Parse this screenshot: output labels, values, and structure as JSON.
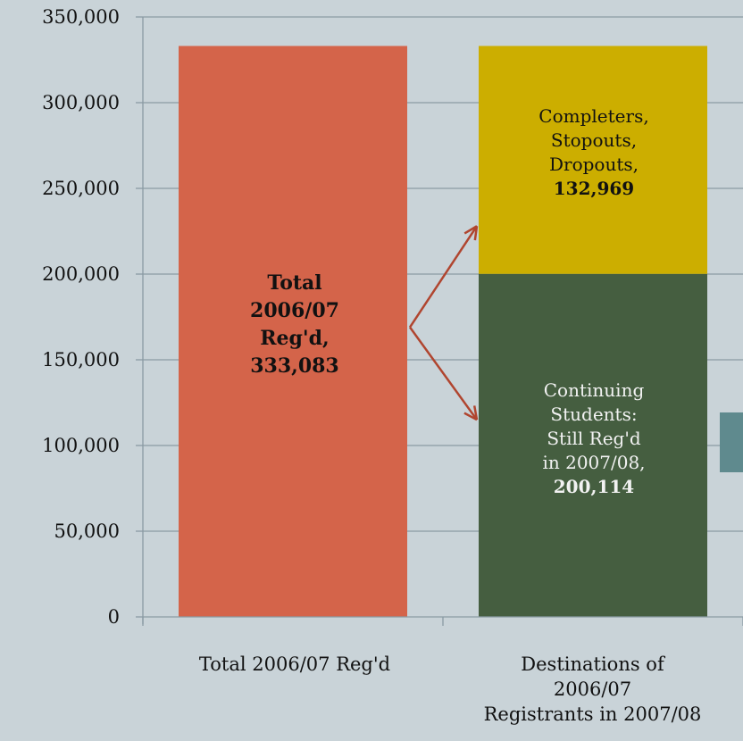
{
  "chart_data": {
    "type": "bar",
    "stacked": true,
    "categories": [
      "Total 2006/07 Reg'd",
      "Destinations of 2006/07 Registrants in 2007/08"
    ],
    "category_lines": [
      [
        "Total 2006/07 Reg'd"
      ],
      [
        "Destinations of",
        "2006/07",
        "Registrants in 2007/08"
      ]
    ],
    "series": [
      {
        "key": "total",
        "values": [
          333083,
          0
        ],
        "color": "#d4644a"
      },
      {
        "key": "continuing",
        "values": [
          0,
          200114
        ],
        "color": "#455e40"
      },
      {
        "key": "completers",
        "values": [
          0,
          132969
        ],
        "color": "#ccae00"
      }
    ],
    "ylim": [
      0,
      350000
    ],
    "yticks": [
      "0",
      "50,000",
      "100,000",
      "150,000",
      "200,000",
      "250,000",
      "300,000",
      "350,000"
    ],
    "ytick_values": [
      0,
      50000,
      100000,
      150000,
      200000,
      250000,
      300000,
      350000
    ],
    "grid": true,
    "annotations": {
      "total": {
        "lines": [
          "Total",
          "2006/07",
          "Reg'd,",
          "333,083"
        ]
      },
      "completers": {
        "lines": [
          "Completers,",
          "Stopouts,",
          "Dropouts,"
        ],
        "value": "132,969"
      },
      "continuing": {
        "lines": [
          "Continuing",
          "Students:",
          "Still Reg'd",
          "in 2007/08,"
        ],
        "value": "200,114"
      }
    },
    "arrow_color": "#b0452f",
    "grid_color": "#8a9aa3"
  }
}
